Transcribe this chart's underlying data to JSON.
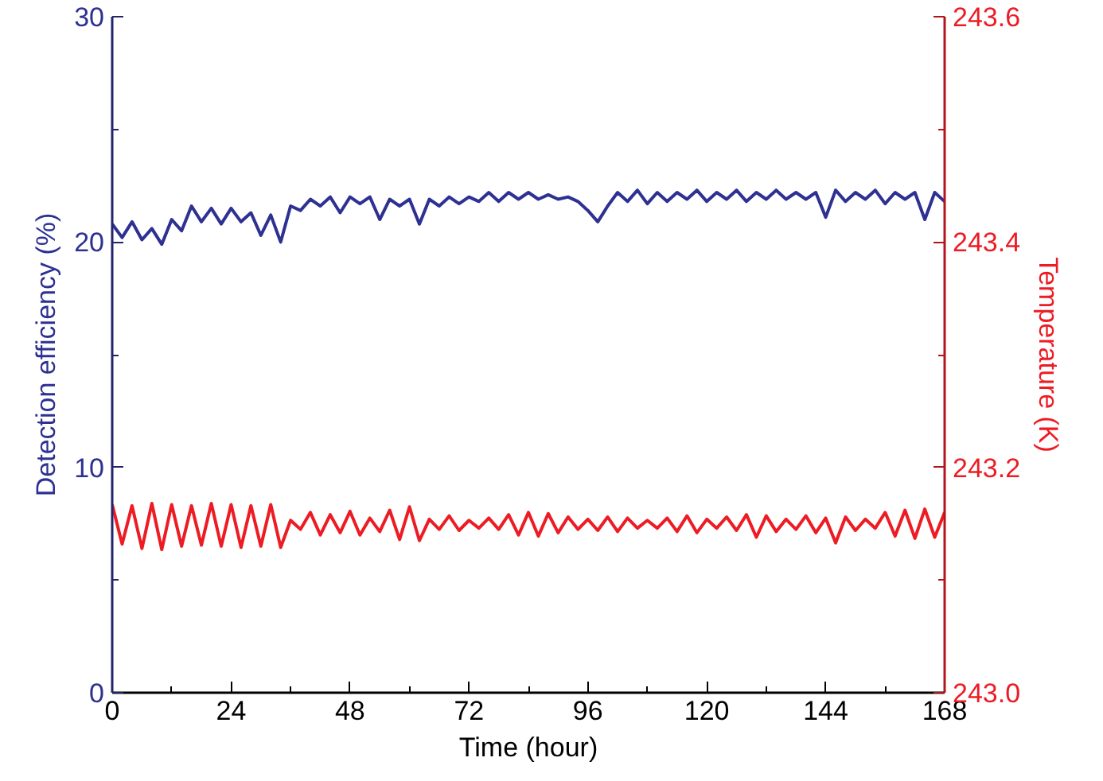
{
  "chart_data": {
    "type": "line",
    "xlabel": "Time (hour)",
    "ylabel": "Detection efficiency (%)",
    "y2label": "Temperature (K)",
    "xlim": [
      0,
      168
    ],
    "xticks": [
      0,
      {
        "value": 12,
        "label": null
      },
      24,
      {
        "value": 36,
        "label": null
      },
      48,
      {
        "value": 60,
        "label": null
      },
      72,
      {
        "value": 84,
        "label": null
      },
      96,
      {
        "value": 108,
        "label": null
      },
      120,
      {
        "value": 132,
        "label": null
      },
      144,
      {
        "value": 156,
        "label": null
      },
      168
    ],
    "ylim": [
      0,
      30
    ],
    "yticks": [
      0,
      {
        "value": 5,
        "label": null
      },
      10,
      {
        "value": 15,
        "label": null
      },
      20,
      {
        "value": 25,
        "label": null
      },
      30
    ],
    "y2lim": [
      243.0,
      243.6
    ],
    "y2ticks": [
      {
        "value": 243.0,
        "label": "243.0"
      },
      {
        "value": 243.1,
        "label": null
      },
      {
        "value": 243.2,
        "label": "243.2"
      },
      {
        "value": 243.3,
        "label": null
      },
      {
        "value": 243.4,
        "label": "243.4"
      },
      {
        "value": 243.5,
        "label": null
      },
      {
        "value": 243.6,
        "label": "243.6"
      }
    ],
    "grid": false,
    "line_style": "solid",
    "x": [
      0,
      2,
      4,
      6,
      8,
      10,
      12,
      14,
      16,
      18,
      20,
      22,
      24,
      26,
      28,
      30,
      32,
      34,
      36,
      38,
      40,
      42,
      44,
      46,
      48,
      50,
      52,
      54,
      56,
      58,
      60,
      62,
      64,
      66,
      68,
      70,
      72,
      74,
      76,
      78,
      80,
      82,
      84,
      86,
      88,
      90,
      92,
      94,
      96,
      98,
      100,
      102,
      104,
      106,
      108,
      110,
      112,
      114,
      116,
      118,
      120,
      122,
      124,
      126,
      128,
      130,
      132,
      134,
      136,
      138,
      140,
      142,
      144,
      146,
      148,
      150,
      152,
      154,
      156,
      158,
      160,
      162,
      164,
      166,
      168
    ],
    "series": [
      {
        "color": "#2e3192",
        "values": [
          20.8,
          20.2,
          20.9,
          20.1,
          20.6,
          19.9,
          21.0,
          20.5,
          21.6,
          20.9,
          21.5,
          20.8,
          21.5,
          20.9,
          21.3,
          20.3,
          21.2,
          20.0,
          21.6,
          21.4,
          21.9,
          21.6,
          22.0,
          21.3,
          22.0,
          21.7,
          22.0,
          21.0,
          21.9,
          21.6,
          21.9,
          20.8,
          21.9,
          21.6,
          22.0,
          21.7,
          22.0,
          21.8,
          22.2,
          21.8,
          22.2,
          21.9,
          22.2,
          21.9,
          22.1,
          21.9,
          22.0,
          21.8,
          21.4,
          20.9,
          21.6,
          22.2,
          21.8,
          22.3,
          21.7,
          22.2,
          21.8,
          22.2,
          21.9,
          22.3,
          21.8,
          22.2,
          21.9,
          22.3,
          21.8,
          22.2,
          21.9,
          22.3,
          21.9,
          22.2,
          21.9,
          22.2,
          21.1,
          22.3,
          21.8,
          22.2,
          21.9,
          22.3,
          21.7,
          22.2,
          21.9,
          22.2,
          21.0,
          22.2,
          21.8
        ]
      },
      {
        "color": "#ed1c24",
        "axis": "y2",
        "values": [
          243.167,
          243.132,
          243.166,
          243.128,
          243.168,
          243.127,
          243.167,
          243.13,
          243.166,
          243.131,
          243.168,
          243.13,
          243.167,
          243.129,
          243.166,
          243.13,
          243.167,
          243.129,
          243.153,
          243.145,
          243.16,
          243.14,
          243.158,
          243.142,
          243.161,
          243.14,
          243.155,
          243.143,
          243.162,
          243.136,
          243.165,
          243.135,
          243.154,
          243.145,
          243.157,
          243.144,
          243.153,
          243.146,
          243.155,
          243.145,
          243.158,
          243.14,
          243.16,
          243.139,
          243.159,
          243.142,
          243.156,
          243.145,
          243.154,
          243.144,
          243.156,
          243.143,
          243.155,
          243.146,
          243.153,
          243.146,
          243.155,
          243.143,
          243.157,
          243.142,
          243.154,
          243.146,
          243.156,
          243.144,
          243.158,
          243.138,
          243.157,
          243.143,
          243.154,
          243.145,
          243.157,
          243.142,
          243.155,
          243.133,
          243.156,
          243.144,
          243.154,
          243.146,
          243.16,
          243.139,
          243.162,
          243.137,
          243.163,
          243.138,
          243.16
        ]
      }
    ]
  }
}
